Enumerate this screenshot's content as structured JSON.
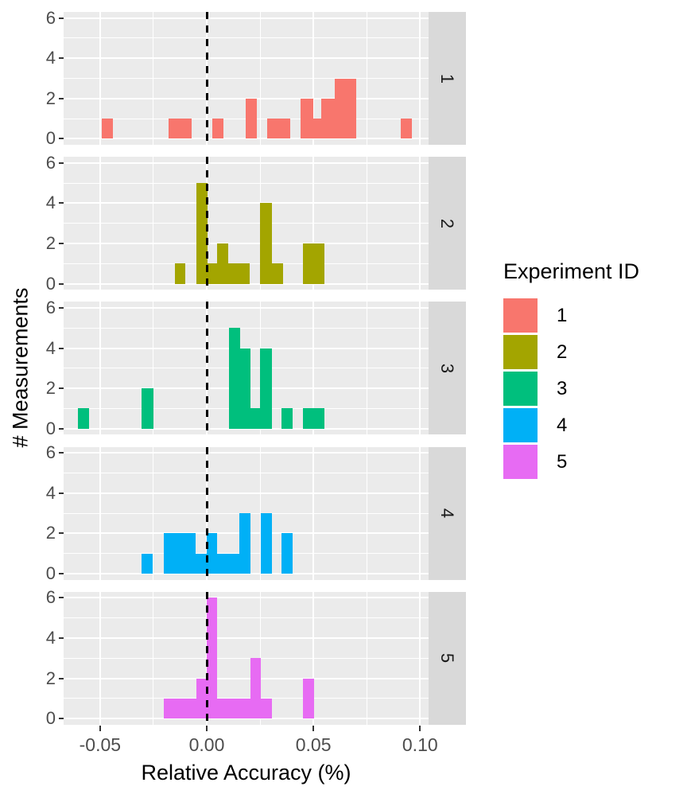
{
  "figure": {
    "background": "#FFFFFF",
    "panel_bg": "#EBEBEB",
    "strip_bg": "#D9D9D9",
    "grid_color": "#FFFFFF",
    "tick_label_color": "#4D4D4D",
    "tick_mark_color": "#333333"
  },
  "chart_data": {
    "type": "bar",
    "subtype": "faceted-histograms",
    "title": "",
    "xlabel": "Relative Accuracy (%)",
    "ylabel": "# Measurements",
    "x_ticks": [
      -0.05,
      0.0,
      0.05,
      0.1
    ],
    "x_tick_labels": [
      "-0.05",
      "0.00",
      "0.05",
      "0.10"
    ],
    "x_minor": [
      -0.025,
      0.025,
      0.075
    ],
    "xlim": [
      -0.0671,
      0.104
    ],
    "y_ticks": [
      0,
      2,
      4,
      6
    ],
    "y_tick_labels": [
      "0",
      "2",
      "4",
      "6"
    ],
    "y_minor": [
      1,
      3,
      5
    ],
    "ylim": [
      -0.3,
      6.3
    ],
    "grid": true,
    "binwidth": 0.005,
    "zero_line": {
      "x": 0,
      "style": "dashed",
      "color": "#000000"
    },
    "legend": {
      "title": "Experiment ID",
      "position": "right",
      "entries": [
        {
          "label": "1",
          "color": "#F8766D"
        },
        {
          "label": "2",
          "color": "#A3A500"
        },
        {
          "label": "3",
          "color": "#00BF7D"
        },
        {
          "label": "4",
          "color": "#00B0F6"
        },
        {
          "label": "5",
          "color": "#E76BF3"
        }
      ]
    },
    "facets": [
      {
        "id": "1",
        "color": "#F8766D",
        "bars": [
          {
            "x1": -0.0492,
            "x2": -0.044,
            "h": 1
          },
          {
            "x1": -0.0179,
            "x2": -0.0071,
            "h": 1
          },
          {
            "x1": 0.0026,
            "x2": 0.0078,
            "h": 1
          },
          {
            "x1": 0.0183,
            "x2": 0.0235,
            "h": 2
          },
          {
            "x1": 0.0283,
            "x2": 0.0391,
            "h": 1
          },
          {
            "x1": 0.044,
            "x2": 0.0499,
            "h": 2
          },
          {
            "x1": 0.0499,
            "x2": 0.0537,
            "h": 1
          },
          {
            "x1": 0.0537,
            "x2": 0.06,
            "h": 2
          },
          {
            "x1": 0.06,
            "x2": 0.0701,
            "h": 3
          },
          {
            "x1": 0.0909,
            "x2": 0.0962,
            "h": 1
          }
        ]
      },
      {
        "id": "2",
        "color": "#A3A500",
        "bars": [
          {
            "x1": -0.0149,
            "x2": -0.01,
            "h": 1
          },
          {
            "x1": -0.0047,
            "x2": 0.0003,
            "h": 5
          },
          {
            "x1": 0.0003,
            "x2": 0.005,
            "h": 1
          },
          {
            "x1": 0.005,
            "x2": 0.0102,
            "h": 2
          },
          {
            "x1": 0.0102,
            "x2": 0.0202,
            "h": 1
          },
          {
            "x1": 0.0251,
            "x2": 0.0305,
            "h": 4
          },
          {
            "x1": 0.0305,
            "x2": 0.0358,
            "h": 1
          },
          {
            "x1": 0.0451,
            "x2": 0.055,
            "h": 2
          }
        ]
      },
      {
        "id": "3",
        "color": "#00BF7D",
        "bars": [
          {
            "x1": -0.0603,
            "x2": -0.0553,
            "h": 1
          },
          {
            "x1": -0.0304,
            "x2": -0.0249,
            "h": 2
          },
          {
            "x1": 0.0103,
            "x2": 0.0155,
            "h": 5
          },
          {
            "x1": 0.0155,
            "x2": 0.0205,
            "h": 4
          },
          {
            "x1": 0.0205,
            "x2": 0.0249,
            "h": 1
          },
          {
            "x1": 0.0249,
            "x2": 0.0305,
            "h": 4
          },
          {
            "x1": 0.0352,
            "x2": 0.0404,
            "h": 1
          },
          {
            "x1": 0.0451,
            "x2": 0.055,
            "h": 1
          }
        ]
      },
      {
        "id": "4",
        "color": "#00B0F6",
        "bars": [
          {
            "x1": -0.0304,
            "x2": -0.0255,
            "h": 1
          },
          {
            "x1": -0.0202,
            "x2": -0.0053,
            "h": 2
          },
          {
            "x1": -0.0053,
            "x2": 0.0,
            "h": 1
          },
          {
            "x1": 0.0,
            "x2": 0.005,
            "h": 2
          },
          {
            "x1": 0.005,
            "x2": 0.0153,
            "h": 1
          },
          {
            "x1": 0.0153,
            "x2": 0.0205,
            "h": 3
          },
          {
            "x1": 0.0255,
            "x2": 0.0305,
            "h": 3
          },
          {
            "x1": 0.0352,
            "x2": 0.0404,
            "h": 2
          }
        ]
      },
      {
        "id": "5",
        "color": "#E76BF3",
        "bars": [
          {
            "x1": -0.0202,
            "x2": -0.005,
            "h": 1
          },
          {
            "x1": -0.005,
            "x2": 0.0,
            "h": 2
          },
          {
            "x1": 0.0,
            "x2": 0.005,
            "h": 6
          },
          {
            "x1": 0.005,
            "x2": 0.0205,
            "h": 1
          },
          {
            "x1": 0.0205,
            "x2": 0.0255,
            "h": 3
          },
          {
            "x1": 0.0255,
            "x2": 0.0305,
            "h": 1
          },
          {
            "x1": 0.0451,
            "x2": 0.0503,
            "h": 2
          }
        ]
      }
    ]
  }
}
